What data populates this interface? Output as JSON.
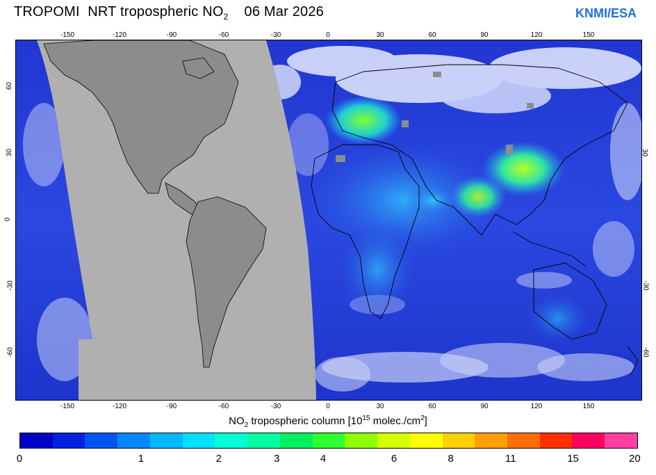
{
  "title": {
    "prefix": "TROPOMI  NRT tropospheric NO",
    "subscript": "2",
    "date": "06 Mar 2026"
  },
  "brand": "KNMI/ESA",
  "map": {
    "x_ticks": [
      "-150",
      "-120",
      "-90",
      "-60",
      "-30",
      "0",
      "30",
      "60",
      "90",
      "120",
      "150"
    ],
    "y_ticks_left": [
      "60",
      "30",
      "0",
      "-30",
      "-60"
    ],
    "y_ticks_right": [
      "30",
      "-30",
      "-60"
    ],
    "colors": {
      "background_ocean": "#2a3fd8",
      "no_data_region": "#b0b0b0",
      "land_no_data": "#8c8c8c",
      "cloud": "#ffffff",
      "coast": "#000000"
    }
  },
  "colorbar": {
    "label_prefix": "NO",
    "label_sub": "2",
    "label_mid": " tropospheric column [10",
    "label_sup": "15",
    "label_unit": " molec./cm",
    "label_sup2": "2",
    "label_end": "]",
    "ticks": [
      "0",
      "1",
      "2",
      "3",
      "4",
      "6",
      "8",
      "11",
      "15",
      "20"
    ],
    "colors": [
      "#0000c8",
      "#0022e0",
      "#0055f0",
      "#0088ff",
      "#00b8ff",
      "#00e0ff",
      "#00ffd8",
      "#00ffa0",
      "#00f060",
      "#30ff30",
      "#90ff00",
      "#d8ff00",
      "#ffff00",
      "#ffd000",
      "#ffa000",
      "#ff7000",
      "#ff3000",
      "#ff0060",
      "#ff40a0"
    ]
  }
}
